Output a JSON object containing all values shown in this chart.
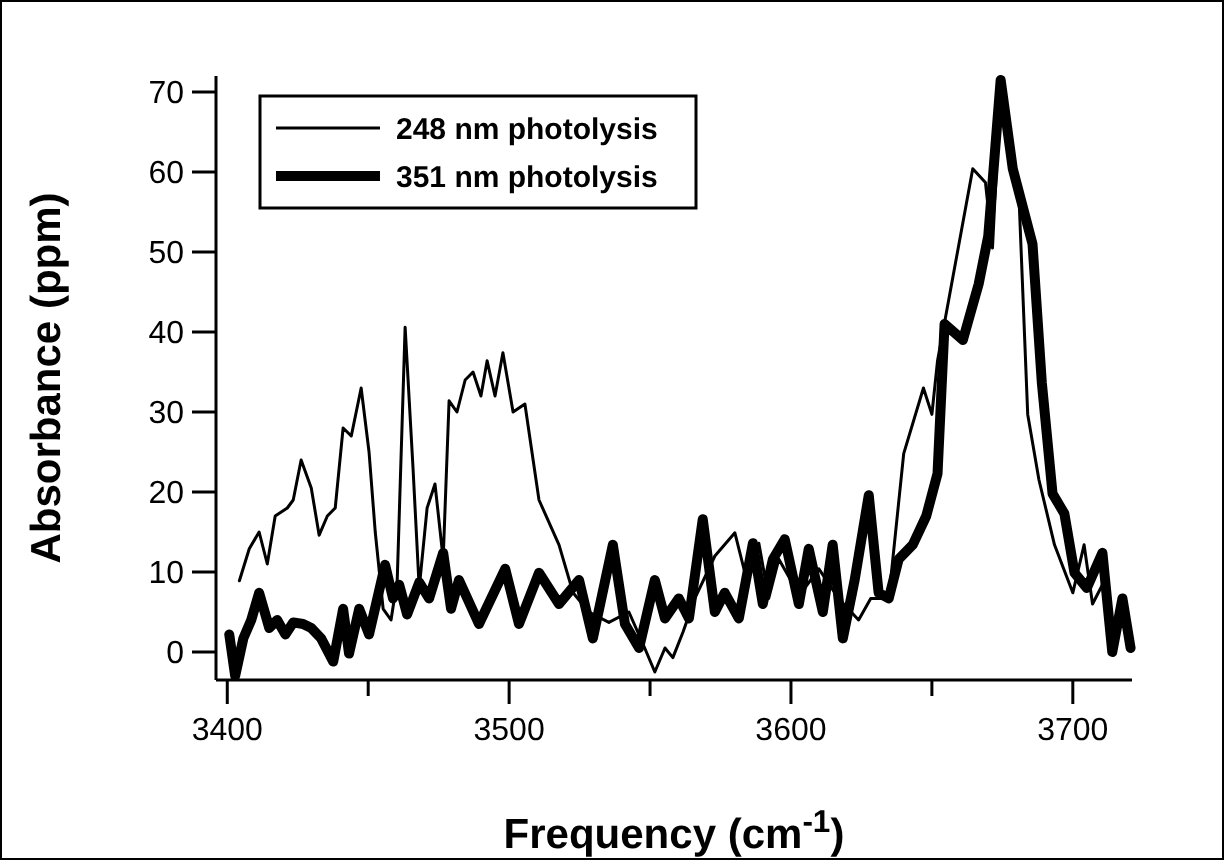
{
  "chart_data": {
    "type": "line",
    "xlabel": "Frequency (cm$^{-1}$)",
    "ylabel": "Absorbance (ppm)",
    "xlim": [
      3396,
      3721
    ],
    "ylim": [
      -3.5,
      72
    ],
    "xticks": [
      3400,
      {
        "value": 3450,
        "label": null
      },
      3500,
      {
        "value": 3550,
        "label": null
      },
      3600,
      {
        "value": 3650,
        "label": null
      },
      3700
    ],
    "yticks": [
      0,
      10,
      20,
      30,
      40,
      50,
      60,
      70
    ],
    "legend": "top left",
    "grid": false,
    "marker": "none",
    "line_style": "solid",
    "series": [
      {
        "name": "248 nm photolysis",
        "color": "#000000",
        "x": [
          3404.3,
          3407.8,
          3411.3,
          3414.2,
          3417,
          3421.3,
          3423.4,
          3426.2,
          3429.8,
          3432.6,
          3435.5,
          3438.3,
          3441.1,
          3444,
          3447.5,
          3450.3,
          3452.5,
          3455.3,
          3458.1,
          3460.3,
          3463.1,
          3465.9,
          3468.1,
          3470.9,
          3473.7,
          3476.6,
          3478.7,
          3481.5,
          3484.4,
          3487.2,
          3490,
          3492.2,
          3495,
          3497.8,
          3501.4,
          3505.6,
          3510.6,
          3517.7,
          3522.7,
          3528.3,
          3535.4,
          3542.5,
          3547.5,
          3551.7,
          3555.3,
          3558.1,
          3561.7,
          3565.9,
          3573,
          3580.1,
          3584.3,
          3588.6,
          3592.1,
          3595.7,
          3599.9,
          3604.9,
          3609.9,
          3616.9,
          3624,
          3628.3,
          3634.7,
          3640,
          3647,
          3650,
          3652,
          3657,
          3664.5,
          3669,
          3671.5,
          3674.4,
          3681,
          3684,
          3688,
          3693.5,
          3700,
          3704,
          3707,
          3710.5,
          3714,
          3718
        ],
        "values": [
          8.9,
          12.9,
          15,
          11,
          17,
          18,
          19,
          24,
          20.5,
          14.6,
          17,
          18,
          28,
          27,
          33,
          25,
          15,
          5.4,
          4,
          9,
          40.6,
          23,
          8,
          18,
          21,
          11.6,
          31.4,
          30,
          34,
          35,
          32,
          36.4,
          32,
          37.4,
          30,
          31,
          19,
          13.4,
          7.4,
          5,
          3.7,
          5,
          1,
          -2.5,
          0.5,
          -0.7,
          2.5,
          6.7,
          12,
          14.9,
          9,
          13.6,
          6.7,
          11.6,
          9,
          8,
          10.4,
          6.7,
          4,
          6.7,
          6.7,
          24.8,
          33,
          29.7,
          36.4,
          46,
          60.4,
          58.7,
          50.5,
          71,
          56,
          29.7,
          21.5,
          13.4,
          7.4,
          13.4,
          6,
          8.4,
          2.5,
          5
        ]
      },
      {
        "name": "351 nm photolysis",
        "color": "#000000",
        "x": [
          3400.7,
          3402.8,
          3405.7,
          3408.5,
          3411.3,
          3414.9,
          3417.7,
          3420.6,
          3423.4,
          3426.9,
          3429.8,
          3433.3,
          3437.6,
          3441.1,
          3443.2,
          3446.8,
          3450.3,
          3456,
          3458.8,
          3461,
          3463.8,
          3468.1,
          3471.6,
          3476.6,
          3479.4,
          3482.2,
          3489.3,
          3498.6,
          3503.5,
          3510.6,
          3517.7,
          3524.8,
          3529.7,
          3536.8,
          3541.1,
          3546.1,
          3551.7,
          3555.3,
          3560.2,
          3563.8,
          3568.7,
          3573,
          3576.5,
          3581.5,
          3586.5,
          3590,
          3593.6,
          3597.8,
          3602.8,
          3606.3,
          3611.3,
          3614.8,
          3618.4,
          3622.6,
          3627.6,
          3631.1,
          3634.7,
          3638.2,
          3643.2,
          3648,
          3652,
          3654.5,
          3661,
          3666.6,
          3670,
          3674.4,
          3678.7,
          3685.7,
          3689,
          3692.8,
          3697,
          3700.6,
          3705,
          3710.5,
          3714,
          3717.6,
          3720.5
        ],
        "values": [
          2.2,
          -3,
          1.7,
          4,
          7.4,
          3,
          4,
          2.2,
          3.7,
          3.5,
          3,
          1.7,
          -1.2,
          5.4,
          -0.2,
          5.4,
          2.2,
          10.9,
          6.7,
          8.4,
          4.7,
          8.7,
          6.7,
          12.4,
          5.4,
          9,
          3.5,
          10.4,
          3.5,
          9.9,
          6,
          9,
          1.7,
          13.4,
          3.5,
          0.5,
          9,
          4.2,
          6.7,
          4.2,
          16.6,
          5,
          7.4,
          4.2,
          13.6,
          6,
          11.6,
          14.1,
          6,
          12.9,
          5,
          13.4,
          1.7,
          9,
          19.6,
          7.4,
          6.7,
          11.6,
          13.4,
          17,
          22.3,
          41,
          39,
          46,
          52,
          71.5,
          60.4,
          51,
          33.7,
          19.8,
          17.3,
          9.9,
          8,
          12.4,
          0,
          6.7,
          0.5
        ]
      }
    ]
  }
}
